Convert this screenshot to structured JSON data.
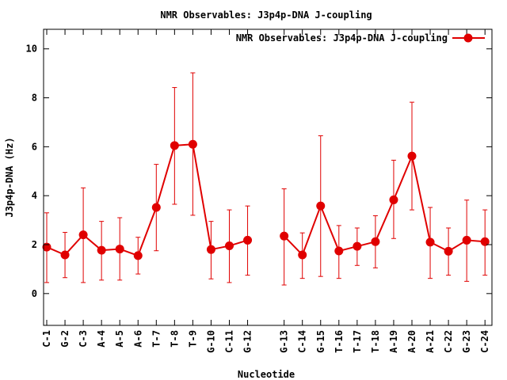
{
  "chart_data": {
    "type": "line",
    "title": "NMR Observables: J3p4p-DNA J-coupling",
    "xlabel": "Nucleotide",
    "ylabel": "J3p4p-DNA (Hz)",
    "ylim": [
      -1.3,
      10.8
    ],
    "yticks": [
      0,
      2,
      4,
      6,
      8,
      10
    ],
    "grid": false,
    "legend_position": "top-right",
    "color": "#e00000",
    "categories": [
      "C-1",
      "G-2",
      "C-3",
      "A-4",
      "A-5",
      "A-6",
      "T-7",
      "T-8",
      "T-9",
      "G-10",
      "C-11",
      "G-12",
      "",
      "G-13",
      "C-14",
      "G-15",
      "T-16",
      "T-17",
      "T-18",
      "A-19",
      "A-20",
      "A-21",
      "C-22",
      "G-23",
      "C-24"
    ],
    "series": [
      {
        "name": "NMR Observables: J3p4p-DNA J-coupling",
        "values": [
          1.9,
          1.58,
          2.4,
          1.77,
          1.82,
          1.55,
          3.52,
          6.05,
          6.1,
          1.8,
          1.95,
          2.18,
          null,
          2.35,
          1.58,
          3.58,
          1.74,
          1.93,
          2.12,
          3.83,
          5.62,
          2.1,
          1.73,
          2.18,
          2.12
        ],
        "error_low": [
          0.45,
          0.65,
          0.45,
          0.55,
          0.55,
          0.8,
          1.75,
          3.65,
          3.2,
          0.6,
          0.45,
          0.75,
          null,
          0.35,
          0.62,
          0.7,
          0.62,
          1.15,
          1.05,
          2.25,
          3.42,
          0.62,
          0.75,
          0.5,
          0.75
        ],
        "error_high": [
          3.3,
          2.5,
          4.32,
          2.95,
          3.1,
          2.3,
          5.28,
          8.42,
          9.02,
          2.95,
          3.42,
          3.58,
          null,
          4.28,
          2.48,
          6.45,
          2.78,
          2.68,
          3.18,
          5.45,
          7.82,
          3.52,
          2.68,
          3.82,
          3.42
        ]
      }
    ]
  }
}
